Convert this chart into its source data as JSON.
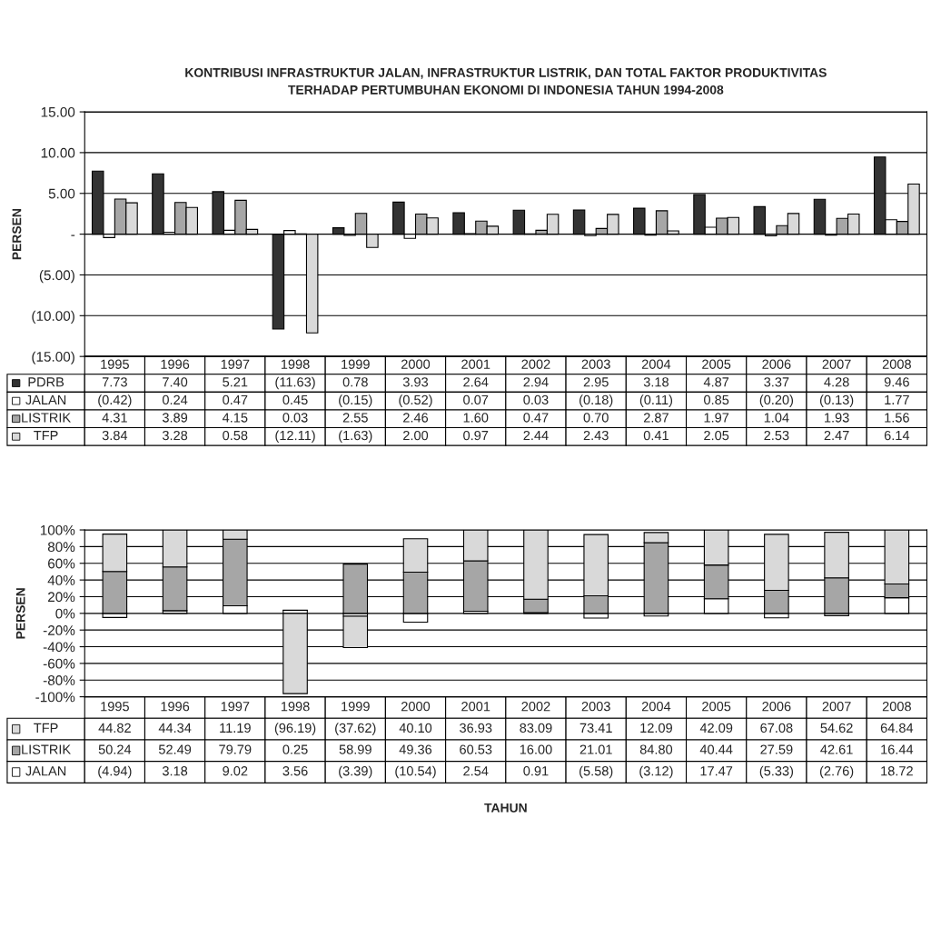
{
  "chart_data": [
    {
      "type": "bar",
      "title": "KONTRIBUSI INFRASTRUKTUR JALAN, INFRASTRUKTUR LISTRIK, DAN TOTAL FAKTOR PRODUKTIVITAS\nTERHADAP PERTUMBUHAN EKONOMI DI INDONESIA TAHUN 1994-2008",
      "ylabel": "PERSEN",
      "categories": [
        "1995",
        "1996",
        "1997",
        "1998",
        "1999",
        "2000",
        "2001",
        "2002",
        "2003",
        "2004",
        "2005",
        "2006",
        "2007",
        "2008"
      ],
      "series": [
        {
          "name": "PDRB",
          "color": "#333333",
          "values": [
            7.73,
            7.4,
            5.21,
            -11.63,
            0.78,
            3.93,
            2.64,
            2.94,
            2.95,
            3.18,
            4.87,
            3.37,
            4.28,
            9.46
          ],
          "value_labels": [
            "7.73",
            "7.40",
            "5.21",
            "(11.63)",
            "0.78",
            "3.93",
            "2.64",
            "2.94",
            "2.95",
            "3.18",
            "4.87",
            "3.37",
            "4.28",
            "9.46"
          ]
        },
        {
          "name": "JALAN",
          "color": "#ffffff",
          "values": [
            -0.42,
            0.24,
            0.47,
            0.45,
            -0.15,
            -0.52,
            0.07,
            0.03,
            -0.18,
            -0.11,
            0.85,
            -0.2,
            -0.13,
            1.77
          ],
          "value_labels": [
            "(0.42)",
            "0.24",
            "0.47",
            "0.45",
            "(0.15)",
            "(0.52)",
            "0.07",
            "0.03",
            "(0.18)",
            "(0.11)",
            "0.85",
            "(0.20)",
            "(0.13)",
            "1.77"
          ]
        },
        {
          "name": "LISTRIK",
          "color": "#a6a6a6",
          "values": [
            4.31,
            3.89,
            4.15,
            0.03,
            2.55,
            2.46,
            1.6,
            0.47,
            0.7,
            2.87,
            1.97,
            1.04,
            1.93,
            1.56
          ],
          "value_labels": [
            "4.31",
            "3.89",
            "4.15",
            "0.03",
            "2.55",
            "2.46",
            "1.60",
            "0.47",
            "0.70",
            "2.87",
            "1.97",
            "1.04",
            "1.93",
            "1.56"
          ]
        },
        {
          "name": "TFP",
          "color": "#d9d9d9",
          "values": [
            3.84,
            3.28,
            0.58,
            -12.11,
            -1.63,
            2.0,
            0.97,
            2.44,
            2.43,
            0.41,
            2.05,
            2.53,
            2.47,
            6.14
          ],
          "value_labels": [
            "3.84",
            "3.28",
            "0.58",
            "(12.11)",
            "(1.63)",
            "2.00",
            "0.97",
            "2.44",
            "2.43",
            "0.41",
            "2.05",
            "2.53",
            "2.47",
            "6.14"
          ]
        }
      ],
      "ylim": [
        -15,
        15
      ],
      "yticks": [
        {
          "value": -15,
          "label": "(15.00)"
        },
        {
          "value": -10,
          "label": "(10.00)"
        },
        {
          "value": -5,
          "label": "(5.00)"
        },
        {
          "value": 0,
          "label": "-"
        },
        {
          "value": 5,
          "label": "5.00"
        },
        {
          "value": 10,
          "label": "10.00"
        },
        {
          "value": 15,
          "label": "15.00"
        }
      ],
      "grid": "y",
      "legend": "bottom"
    },
    {
      "type": "bar",
      "stacked": true,
      "ylabel": "PERSEN",
      "xlabel": "TAHUN",
      "categories": [
        "1995",
        "1996",
        "1997",
        "1998",
        "1999",
        "2000",
        "2001",
        "2002",
        "2003",
        "2004",
        "2005",
        "2006",
        "2007",
        "2008"
      ],
      "series": [
        {
          "name": "JALAN",
          "color": "#ffffff",
          "values": [
            -4.94,
            3.18,
            9.02,
            3.56,
            -3.39,
            -10.54,
            2.54,
            0.91,
            -5.58,
            -3.12,
            17.47,
            -5.33,
            -2.76,
            18.72
          ],
          "value_labels": [
            "(4.94)",
            "3.18",
            "9.02",
            "3.56",
            "(3.39)",
            "(10.54)",
            "2.54",
            "0.91",
            "(5.58)",
            "(3.12)",
            "17.47",
            "(5.33)",
            "(2.76)",
            "18.72"
          ]
        },
        {
          "name": "LISTRIK",
          "color": "#a6a6a6",
          "values": [
            50.24,
            52.49,
            79.79,
            0.25,
            58.99,
            49.36,
            60.53,
            16.0,
            21.01,
            84.8,
            40.44,
            27.59,
            42.61,
            16.44
          ],
          "value_labels": [
            "50.24",
            "52.49",
            "79.79",
            "0.25",
            "58.99",
            "49.36",
            "60.53",
            "16.00",
            "21.01",
            "84.80",
            "40.44",
            "27.59",
            "42.61",
            "16.44"
          ]
        },
        {
          "name": "TFP",
          "color": "#d9d9d9",
          "values": [
            44.82,
            44.34,
            11.19,
            -96.19,
            -37.62,
            40.1,
            36.93,
            83.09,
            73.41,
            12.09,
            42.09,
            67.08,
            54.62,
            64.84
          ],
          "value_labels": [
            "44.82",
            "44.34",
            "11.19",
            "(96.19)",
            "(37.62)",
            "40.10",
            "36.93",
            "83.09",
            "73.41",
            "12.09",
            "42.09",
            "67.08",
            "54.62",
            "64.84"
          ]
        }
      ],
      "ylim": [
        -100,
        100
      ],
      "yticks": [
        {
          "value": -100,
          "label": "-100%"
        },
        {
          "value": -80,
          "label": "-80%"
        },
        {
          "value": -60,
          "label": "-60%"
        },
        {
          "value": -40,
          "label": "-40%"
        },
        {
          "value": -20,
          "label": "-20%"
        },
        {
          "value": 0,
          "label": "0%"
        },
        {
          "value": 20,
          "label": "20%"
        },
        {
          "value": 40,
          "label": "40%"
        },
        {
          "value": 60,
          "label": "60%"
        },
        {
          "value": 80,
          "label": "80%"
        },
        {
          "value": 100,
          "label": "100%"
        }
      ],
      "grid": "y",
      "legend": "bottom"
    }
  ]
}
